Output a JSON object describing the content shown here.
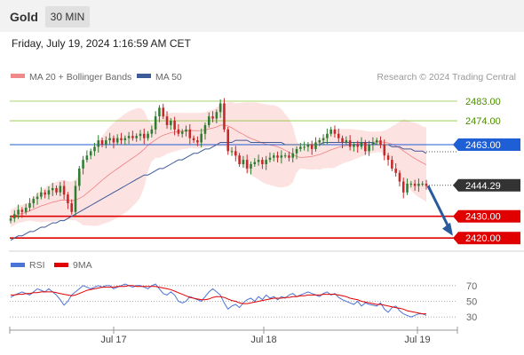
{
  "header": {
    "instrument": "Gold",
    "timeframe": "30 MIN"
  },
  "timestamp": "Friday, July 19, 2024 1:16:59 AM CET",
  "legend": {
    "bollinger": "MA 20 + Bollinger Bands",
    "ma50": "MA 50",
    "rsi": "RSI",
    "rsi_ma": "9MA"
  },
  "watermark": "Research © 2024 Trading Central",
  "colors": {
    "up": "#2e7d32",
    "down": "#c62828",
    "ma50": "#3d5a99",
    "bollinger_fill": "#fde2e2",
    "bollinger_line": "#f08080",
    "green_level": "#8cc63f",
    "resistance": "#1f5fd6",
    "support": "#e00000",
    "rsi": "#4a74d6",
    "rsi_ma": "#e00000",
    "arrow": "#2a5a9e"
  },
  "chart_data": [
    {
      "type": "candlestick",
      "ylim": [
        2416,
        2492
      ],
      "x_ticks": [
        "Jul 17",
        "Jul 18",
        "Jul 19"
      ],
      "levels": [
        {
          "value": 2483.0,
          "label": "2483.00",
          "kind": "green"
        },
        {
          "value": 2474.0,
          "label": "2474.00",
          "kind": "green"
        },
        {
          "value": 2463.0,
          "label": "2463.00",
          "kind": "resistance"
        },
        {
          "value": 2444.29,
          "label": "2444.29",
          "kind": "last"
        },
        {
          "value": 2430.0,
          "label": "2430.00",
          "kind": "support"
        },
        {
          "value": 2420.0,
          "label": "2420.00",
          "kind": "support"
        }
      ],
      "close": [
        2429,
        2431,
        2433,
        2432,
        2434,
        2436,
        2438,
        2439,
        2441,
        2440,
        2442,
        2443,
        2441,
        2444,
        2440,
        2436,
        2432,
        2444,
        2452,
        2456,
        2458,
        2460,
        2462,
        2465,
        2463,
        2465,
        2466,
        2464,
        2466,
        2465,
        2466,
        2467,
        2466,
        2467,
        2468,
        2466,
        2468,
        2470,
        2476,
        2480,
        2476,
        2472,
        2474,
        2470,
        2468,
        2469,
        2470,
        2466,
        2465,
        2464,
        2468,
        2472,
        2476,
        2475,
        2478,
        2482,
        2470,
        2460,
        2460,
        2458,
        2454,
        2456,
        2452,
        2454,
        2455,
        2456,
        2454,
        2456,
        2457,
        2458,
        2457,
        2458,
        2458,
        2457,
        2459,
        2461,
        2462,
        2462,
        2463,
        2461,
        2464,
        2465,
        2466,
        2468,
        2470,
        2468,
        2466,
        2464,
        2465,
        2462,
        2463,
        2462,
        2464,
        2460,
        2463,
        2464,
        2465,
        2463,
        2458,
        2456,
        2452,
        2450,
        2446,
        2441,
        2445,
        2445,
        2444,
        2445,
        2445,
        2444
      ],
      "ma50": [
        2419,
        2420,
        2421,
        2421,
        2422,
        2423,
        2423,
        2424,
        2425,
        2425,
        2426,
        2427,
        2427,
        2428,
        2428,
        2429,
        2430,
        2431,
        2432,
        2433,
        2434,
        2435,
        2436,
        2437,
        2438,
        2439,
        2440,
        2441,
        2442,
        2443,
        2444,
        2445,
        2446,
        2447,
        2448,
        2449,
        2449,
        2450,
        2451,
        2452,
        2452,
        2453,
        2454,
        2455,
        2456,
        2456,
        2457,
        2458,
        2459,
        2459,
        2460,
        2461,
        2461,
        2462,
        2463,
        2464,
        2464,
        2464,
        2464,
        2465,
        2465,
        2465,
        2465,
        2464,
        2464,
        2464,
        2464,
        2464,
        2464,
        2464,
        2464,
        2464,
        2463,
        2463,
        2463,
        2463,
        2463,
        2463,
        2463,
        2463,
        2463,
        2463,
        2464,
        2464,
        2464,
        2464,
        2464,
        2464,
        2464,
        2464,
        2464,
        2464,
        2464,
        2464,
        2464,
        2464,
        2463,
        2463,
        2463,
        2463,
        2462,
        2462,
        2462,
        2461,
        2461,
        2461,
        2460,
        2460,
        2460,
        2459
      ],
      "rsi": [
        55,
        58,
        60,
        62,
        60,
        58,
        62,
        66,
        64,
        62,
        66,
        62,
        58,
        52,
        45,
        50,
        58,
        62,
        66,
        70,
        68,
        66,
        68,
        70,
        68,
        70,
        70,
        66,
        68,
        70,
        72,
        70,
        68,
        70,
        70,
        68,
        66,
        70,
        72,
        66,
        60,
        58,
        62,
        58,
        50,
        48,
        50,
        56,
        54,
        52,
        50,
        56,
        62,
        66,
        62,
        58,
        48,
        40,
        44,
        46,
        42,
        48,
        52,
        54,
        50,
        56,
        52,
        58,
        54,
        56,
        52,
        56,
        54,
        58,
        60,
        56,
        58,
        60,
        62,
        60,
        58,
        56,
        60,
        62,
        58,
        60,
        55,
        52,
        50,
        48,
        46,
        50,
        44,
        48,
        46,
        45,
        44,
        48,
        40,
        36,
        42,
        44,
        38,
        34,
        32,
        30,
        32,
        34,
        34,
        32
      ],
      "rsi_ma": [
        58,
        58,
        59,
        59,
        60,
        60,
        61,
        61,
        62,
        62,
        62,
        62,
        61,
        60,
        59,
        58,
        57,
        58,
        60,
        62,
        64,
        65,
        66,
        67,
        68,
        68,
        68,
        68,
        69,
        69,
        69,
        70,
        70,
        69,
        69,
        69,
        69,
        69,
        69,
        68,
        67,
        66,
        65,
        63,
        61,
        59,
        57,
        55,
        54,
        53,
        52,
        52,
        53,
        55,
        56,
        56,
        55,
        53,
        51,
        50,
        48,
        47,
        47,
        48,
        49,
        50,
        51,
        52,
        53,
        54,
        54,
        54,
        55,
        55,
        56,
        56,
        57,
        57,
        58,
        58,
        58,
        58,
        59,
        59,
        59,
        59,
        58,
        57,
        56,
        54,
        53,
        52,
        50,
        49,
        48,
        47,
        46,
        46,
        45,
        44,
        43,
        42,
        41,
        40,
        38,
        37,
        36,
        35,
        34,
        34
      ],
      "rsi_levels": [
        70,
        50,
        30
      ]
    }
  ]
}
